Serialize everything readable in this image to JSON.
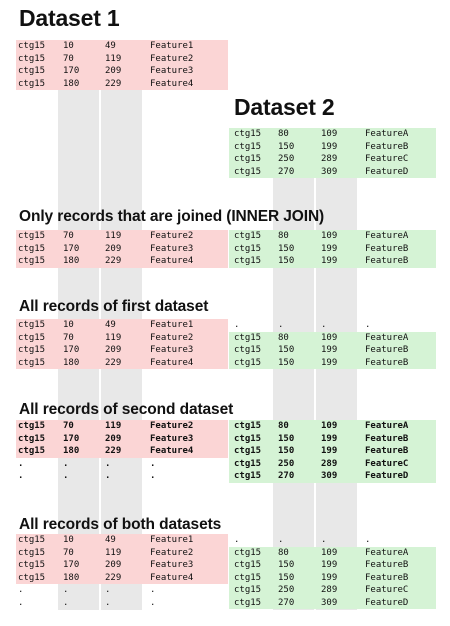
{
  "titles": {
    "dataset1": "Dataset 1",
    "dataset2": "Dataset 2",
    "inner": "Only records that are joined (INNER JOIN)",
    "left": "All records of first dataset",
    "right": "All records of second dataset",
    "full": "All records of both datasets"
  },
  "dataset1": [
    [
      "ctg15",
      "10",
      "49",
      "Feature1"
    ],
    [
      "ctg15",
      "70",
      "119",
      "Feature2"
    ],
    [
      "ctg15",
      "170",
      "209",
      "Feature3"
    ],
    [
      "ctg15",
      "180",
      "229",
      "Feature4"
    ]
  ],
  "dataset2": [
    [
      "ctg15",
      "80",
      "109",
      "FeatureA"
    ],
    [
      "ctg15",
      "150",
      "199",
      "FeatureB"
    ],
    [
      "ctg15",
      "250",
      "289",
      "FeatureC"
    ],
    [
      "ctg15",
      "270",
      "309",
      "FeatureD"
    ]
  ],
  "inner": {
    "left": [
      [
        "ctg15",
        "70",
        "119",
        "Feature2"
      ],
      [
        "ctg15",
        "170",
        "209",
        "Feature3"
      ],
      [
        "ctg15",
        "180",
        "229",
        "Feature4"
      ]
    ],
    "right": [
      [
        "ctg15",
        "80",
        "109",
        "FeatureA"
      ],
      [
        "ctg15",
        "150",
        "199",
        "FeatureB"
      ],
      [
        "ctg15",
        "150",
        "199",
        "FeatureB"
      ]
    ]
  },
  "left_join": {
    "left": [
      [
        "ctg15",
        "10",
        "49",
        "Feature1"
      ],
      [
        "ctg15",
        "70",
        "119",
        "Feature2"
      ],
      [
        "ctg15",
        "170",
        "209",
        "Feature3"
      ],
      [
        "ctg15",
        "180",
        "229",
        "Feature4"
      ]
    ],
    "right": [
      [
        ".",
        ".",
        ".",
        "."
      ],
      [
        "ctg15",
        "80",
        "109",
        "FeatureA"
      ],
      [
        "ctg15",
        "150",
        "199",
        "FeatureB"
      ],
      [
        "ctg15",
        "150",
        "199",
        "FeatureB"
      ]
    ]
  },
  "right_join": {
    "left": [
      [
        "ctg15",
        "70",
        "119",
        "Feature2"
      ],
      [
        "ctg15",
        "170",
        "209",
        "Feature3"
      ],
      [
        "ctg15",
        "180",
        "229",
        "Feature4"
      ],
      [
        ".",
        ".",
        ".",
        "."
      ],
      [
        ".",
        ".",
        ".",
        "."
      ]
    ],
    "right": [
      [
        "ctg15",
        "80",
        "109",
        "FeatureA"
      ],
      [
        "ctg15",
        "150",
        "199",
        "FeatureB"
      ],
      [
        "ctg15",
        "150",
        "199",
        "FeatureB"
      ],
      [
        "ctg15",
        "250",
        "289",
        "FeatureC"
      ],
      [
        "ctg15",
        "270",
        "309",
        "FeatureD"
      ]
    ]
  },
  "full_join": {
    "left": [
      [
        "ctg15",
        "10",
        "49",
        "Feature1"
      ],
      [
        "ctg15",
        "70",
        "119",
        "Feature2"
      ],
      [
        "ctg15",
        "170",
        "209",
        "Feature3"
      ],
      [
        "ctg15",
        "180",
        "229",
        "Feature4"
      ],
      [
        ".",
        ".",
        ".",
        "."
      ],
      [
        ".",
        ".",
        ".",
        "."
      ]
    ],
    "right": [
      [
        ".",
        ".",
        ".",
        "."
      ],
      [
        "ctg15",
        "80",
        "109",
        "FeatureA"
      ],
      [
        "ctg15",
        "150",
        "199",
        "FeatureB"
      ],
      [
        "ctg15",
        "150",
        "199",
        "FeatureB"
      ],
      [
        "ctg15",
        "250",
        "289",
        "FeatureC"
      ],
      [
        "ctg15",
        "270",
        "309",
        "FeatureD"
      ]
    ]
  },
  "colors": {
    "dataset1_bg": "#fbd5d5",
    "dataset2_bg": "#d5f3d5",
    "join_column_band": "#e8e8e8"
  }
}
